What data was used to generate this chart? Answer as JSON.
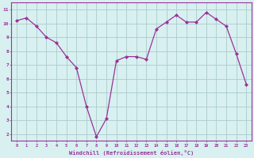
{
  "x": [
    0,
    1,
    2,
    3,
    4,
    5,
    6,
    7,
    8,
    9,
    10,
    11,
    12,
    13,
    14,
    15,
    16,
    17,
    18,
    19,
    20,
    21,
    22,
    23
  ],
  "y": [
    10.2,
    10.4,
    9.8,
    9.0,
    8.6,
    7.6,
    6.8,
    4.0,
    1.8,
    3.1,
    7.3,
    7.6,
    7.6,
    7.4,
    9.6,
    10.1,
    10.6,
    10.1,
    10.1,
    10.8,
    10.3,
    9.8,
    7.8,
    5.6
  ],
  "color": "#993399",
  "bg_color": "#d8f0f0",
  "grid_color": "#aacccc",
  "xlabel": "Windchill (Refroidissement éolien,°C)",
  "yticks": [
    2,
    3,
    4,
    5,
    6,
    7,
    8,
    9,
    10,
    11
  ],
  "xlim": [
    -0.5,
    23.5
  ],
  "ylim": [
    1.5,
    11.5
  ],
  "xlabel_color": "#993399",
  "tick_color": "#993399",
  "spine_color": "#993399"
}
